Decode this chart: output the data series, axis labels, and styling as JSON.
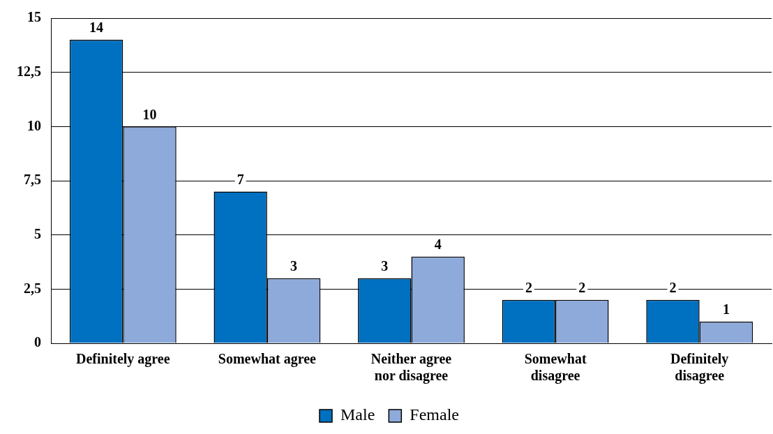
{
  "chart_data": {
    "type": "bar",
    "categories": [
      "Definitely agree",
      "Somewhat agree",
      "Neither agree nor disagree",
      "Somewhat disagree",
      "Definitely disagree"
    ],
    "series": [
      {
        "name": "Male",
        "color": "#0070c0",
        "values": [
          14,
          7,
          3,
          2,
          2
        ]
      },
      {
        "name": "Female",
        "color": "#8eaadb",
        "values": [
          10,
          3,
          4,
          2,
          1
        ]
      }
    ],
    "ylim": [
      0,
      15
    ],
    "yticks": [
      0,
      {
        "value": 2.5,
        "label": "2,5"
      },
      5,
      {
        "value": 7.5,
        "label": "7,5"
      },
      10,
      {
        "value": 12.5,
        "label": "12,5"
      },
      15
    ],
    "grid": "y",
    "legend": "bottom",
    "data_labels": true
  }
}
